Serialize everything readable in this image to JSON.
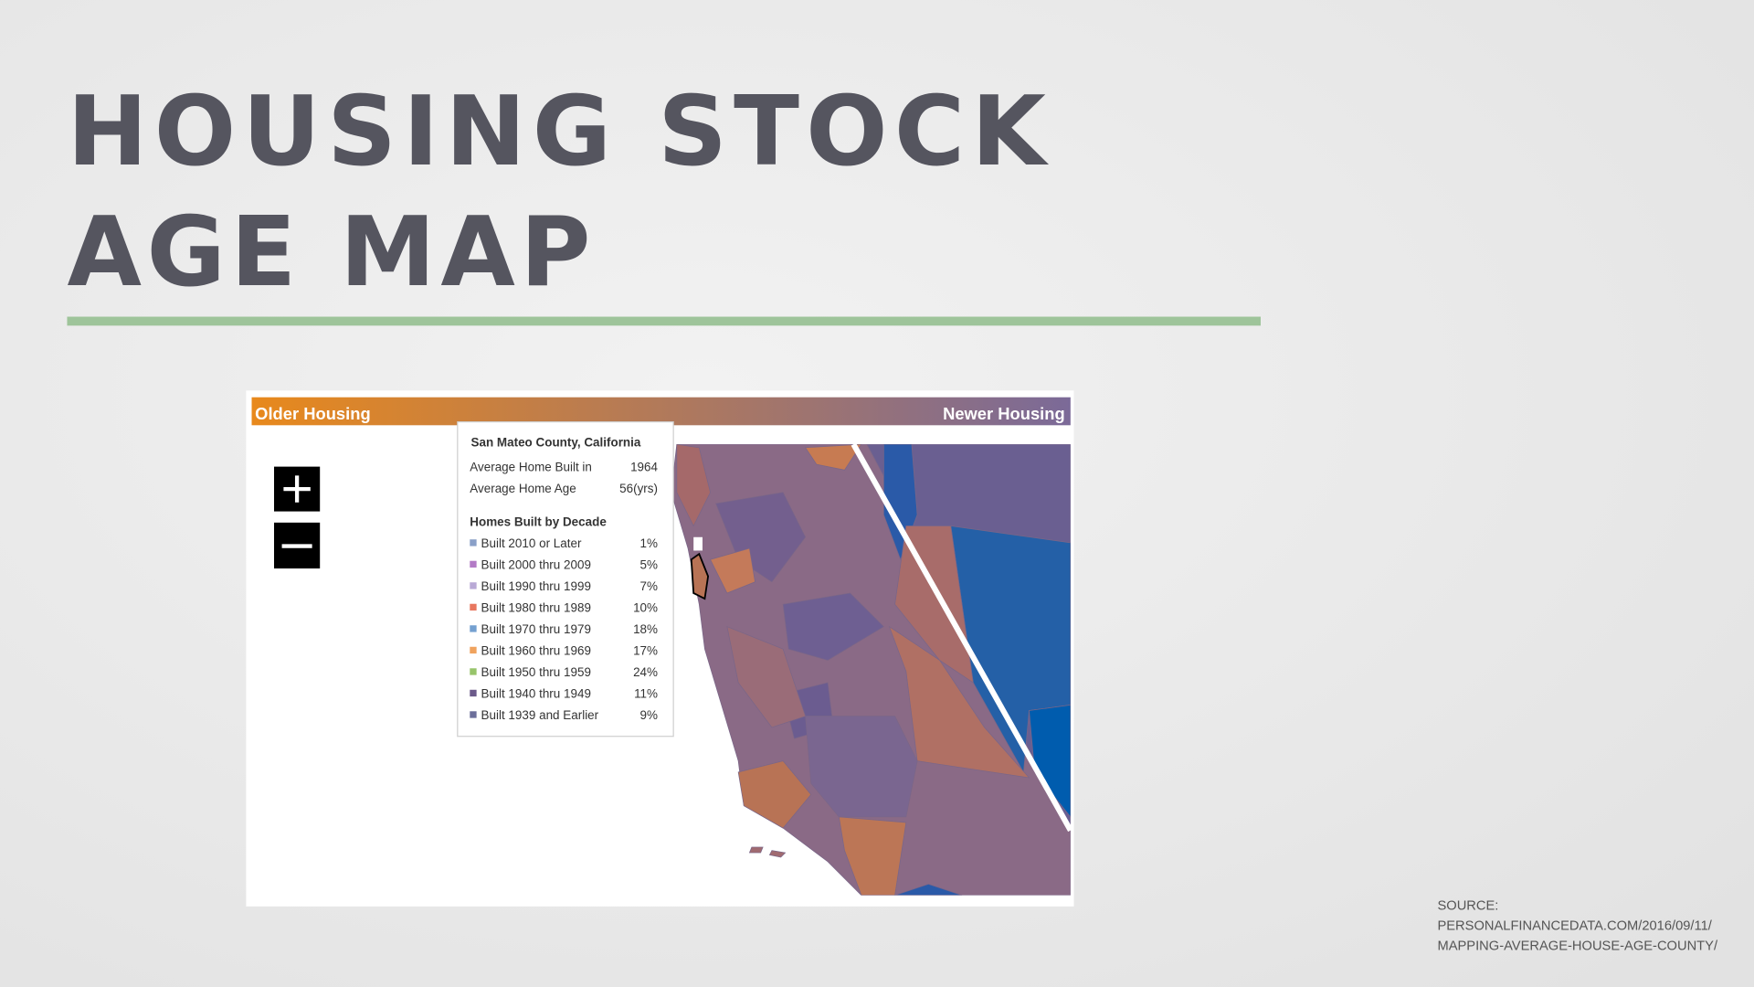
{
  "slide": {
    "title_lines": [
      "HOUSING STOCK",
      "AGE MAP"
    ],
    "map": {
      "legend_left": "Older Housing",
      "legend_right": "Newer Housing",
      "tooltip": {
        "title": "San Mateo County, California",
        "rows": [
          {
            "label": "Average Home Built in",
            "value": "1964"
          },
          {
            "label": "Average Home Age",
            "value": "56(yrs)"
          }
        ],
        "section": "Homes Built by Decade",
        "decades": [
          {
            "label": "Built 2010 or Later",
            "value": "1%",
            "color": "#8aa0c8"
          },
          {
            "label": "Built 2000 thru 2009",
            "value": "5%",
            "color": "#b37bc6"
          },
          {
            "label": "Built 1990 thru 1999",
            "value": "7%",
            "color": "#b9a9d6"
          },
          {
            "label": "Built 1980 thru 1989",
            "value": "10%",
            "color": "#e8775f"
          },
          {
            "label": "Built 1970 thru 1979",
            "value": "18%",
            "color": "#74a0d0"
          },
          {
            "label": "Built 1960 thru 1969",
            "value": "17%",
            "color": "#f0a35e"
          },
          {
            "label": "Built 1950 thru 1959",
            "value": "24%",
            "color": "#97c46a"
          },
          {
            "label": "Built 1940 thru 1949",
            "value": "11%",
            "color": "#6b5a8a"
          },
          {
            "label": "Built 1939 and Earlier",
            "value": "9%",
            "color": "#6c6f9a"
          }
        ]
      }
    },
    "source_lines": [
      "SOURCE:",
      "PERSONALFINANCEDATA.COM/2016/09/11/",
      "MAPPING-AVERAGE-HOUSE-AGE-COUNTY/"
    ]
  }
}
